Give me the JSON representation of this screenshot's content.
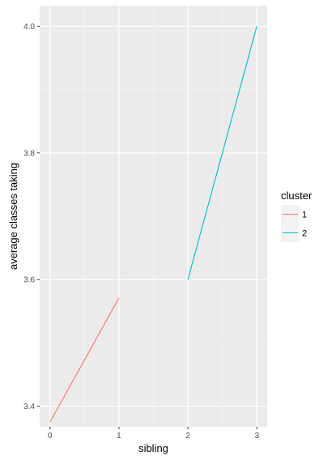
{
  "chart_data": {
    "type": "line",
    "xlabel": "sibling",
    "ylabel": "average classes taking",
    "xlim": [
      -0.15,
      3.15
    ],
    "ylim": [
      3.3675,
      4.0325
    ],
    "x_ticks": [
      0,
      1,
      2,
      3
    ],
    "y_ticks": [
      3.4,
      3.6,
      3.8,
      4.0
    ],
    "x_tick_labels": [
      "0",
      "1",
      "2",
      "3"
    ],
    "y_tick_labels": [
      "3.4",
      "3.6",
      "3.8",
      "4.0"
    ],
    "grid": true,
    "legend": {
      "title": "cluster",
      "placement": "right"
    },
    "series": [
      {
        "name": "1",
        "color": "#F8766D",
        "x": [
          0,
          1
        ],
        "y": [
          3.375,
          3.571
        ]
      },
      {
        "name": "2",
        "color": "#00BFC4",
        "x": [
          2,
          3
        ],
        "y": [
          3.6,
          4.0
        ]
      }
    ]
  }
}
